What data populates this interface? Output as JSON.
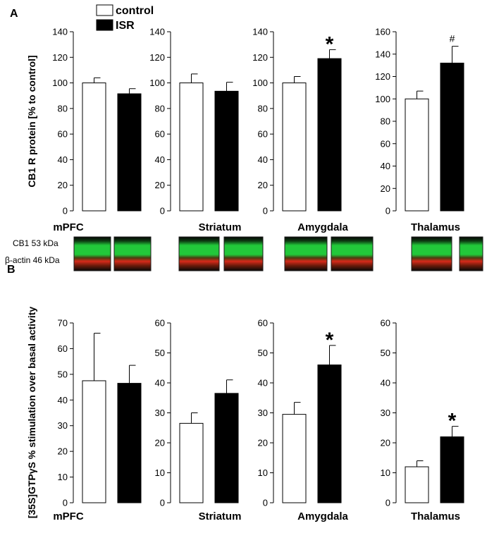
{
  "panels": {
    "a_label": "A",
    "b_label": "B"
  },
  "legend": {
    "control": "control",
    "isr": "ISR"
  },
  "colors": {
    "control_fill": "#ffffff",
    "isr_fill": "#000000",
    "axis": "#000000",
    "blot_green": "#22c83a",
    "blot_red": "#d62a1a",
    "blot_background": "#0a0a0a"
  },
  "blot": {
    "cb1_label": "CB1 53 kDa",
    "actin_label": "β-actin 46 kDa"
  },
  "chart_data": [
    {
      "type": "bar",
      "panel": "A",
      "region": "mPFC",
      "categories": [
        "control",
        "ISR"
      ],
      "values": [
        100,
        91.5
      ],
      "errors": [
        4,
        4
      ],
      "ylabel": "CB1 R protein [% to control]",
      "xlabel": "mPFC",
      "ylim": [
        0,
        140
      ],
      "yticks": [
        0,
        20,
        40,
        60,
        80,
        100,
        120,
        140
      ],
      "annotation": ""
    },
    {
      "type": "bar",
      "panel": "A",
      "region": "Striatum",
      "categories": [
        "control",
        "ISR"
      ],
      "values": [
        100,
        93.5
      ],
      "errors": [
        7,
        7
      ],
      "ylabel": "",
      "xlabel": "Striatum",
      "ylim": [
        0,
        140
      ],
      "yticks": [
        0,
        20,
        40,
        60,
        80,
        100,
        120,
        140
      ],
      "annotation": ""
    },
    {
      "type": "bar",
      "panel": "A",
      "region": "Amygdala",
      "categories": [
        "control",
        "ISR"
      ],
      "values": [
        100,
        119
      ],
      "errors": [
        5,
        7
      ],
      "ylabel": "",
      "xlabel": "Amygdala",
      "ylim": [
        0,
        140
      ],
      "yticks": [
        0,
        20,
        40,
        60,
        80,
        100,
        120,
        140
      ],
      "annotation": "*"
    },
    {
      "type": "bar",
      "panel": "A",
      "region": "Thalamus",
      "categories": [
        "control",
        "ISR"
      ],
      "values": [
        100,
        132
      ],
      "errors": [
        7,
        15
      ],
      "ylabel": "",
      "xlabel": "Thalamus",
      "ylim": [
        0,
        160
      ],
      "yticks": [
        0,
        20,
        40,
        60,
        80,
        100,
        120,
        140,
        160
      ],
      "annotation": "#"
    },
    {
      "type": "bar",
      "panel": "B",
      "region": "mPFC",
      "categories": [
        "control",
        "ISR"
      ],
      "values": [
        47.5,
        46.5
      ],
      "errors": [
        18.5,
        7
      ],
      "ylabel": "[35S]GTPγS % stimulation over basal activity",
      "xlabel": "mPFC",
      "ylim": [
        0,
        70
      ],
      "yticks": [
        0,
        10,
        20,
        30,
        40,
        50,
        60,
        70
      ],
      "annotation": ""
    },
    {
      "type": "bar",
      "panel": "B",
      "region": "Striatum",
      "categories": [
        "control",
        "ISR"
      ],
      "values": [
        26.5,
        36.5
      ],
      "errors": [
        3.5,
        4.5
      ],
      "ylabel": "",
      "xlabel": "Striatum",
      "ylim": [
        0,
        60
      ],
      "yticks": [
        0,
        10,
        20,
        30,
        40,
        50,
        60
      ],
      "annotation": ""
    },
    {
      "type": "bar",
      "panel": "B",
      "region": "Amygdala",
      "categories": [
        "control",
        "ISR"
      ],
      "values": [
        29.5,
        46
      ],
      "errors": [
        4,
        6.5
      ],
      "ylabel": "",
      "xlabel": "Amygdala",
      "ylim": [
        0,
        60
      ],
      "yticks": [
        0,
        10,
        20,
        30,
        40,
        50,
        60
      ],
      "annotation": "*"
    },
    {
      "type": "bar",
      "panel": "B",
      "region": "Thalamus",
      "categories": [
        "control",
        "ISR"
      ],
      "values": [
        12,
        22
      ],
      "errors": [
        2,
        3.5
      ],
      "ylabel": "",
      "xlabel": "Thalamus",
      "ylim": [
        0,
        60
      ],
      "yticks": [
        0,
        10,
        20,
        30,
        40,
        50,
        60
      ],
      "annotation": "*"
    }
  ]
}
